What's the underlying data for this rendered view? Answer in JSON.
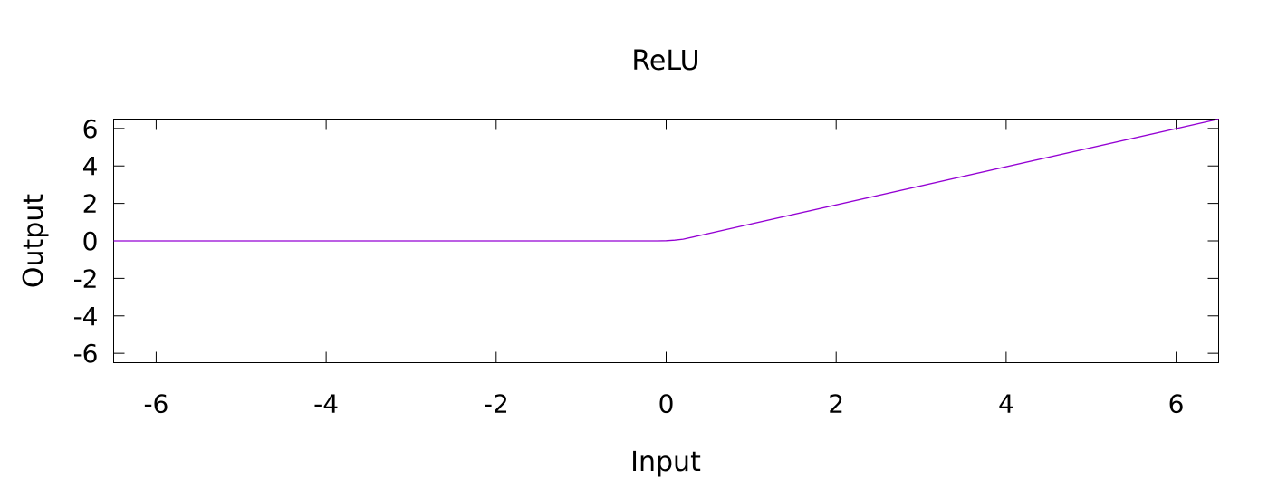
{
  "chart_data": {
    "type": "line",
    "title": "ReLU",
    "xlabel": "Input",
    "ylabel": "Output",
    "xlim": [
      -6.5,
      6.5
    ],
    "ylim": [
      -6.5,
      6.5
    ],
    "xticks": [
      -6,
      -4,
      -2,
      0,
      2,
      4,
      6
    ],
    "yticks": [
      -6,
      -4,
      -2,
      0,
      2,
      4,
      6
    ],
    "grid": false,
    "series": [
      {
        "color": "#9400d3",
        "x": [
          -6.5,
          -0.2,
          -0.1,
          0,
          0.1,
          0.2,
          6.5
        ],
        "y": [
          0,
          0,
          0,
          0.01,
          0.04,
          0.09,
          6.5
        ]
      }
    ]
  }
}
